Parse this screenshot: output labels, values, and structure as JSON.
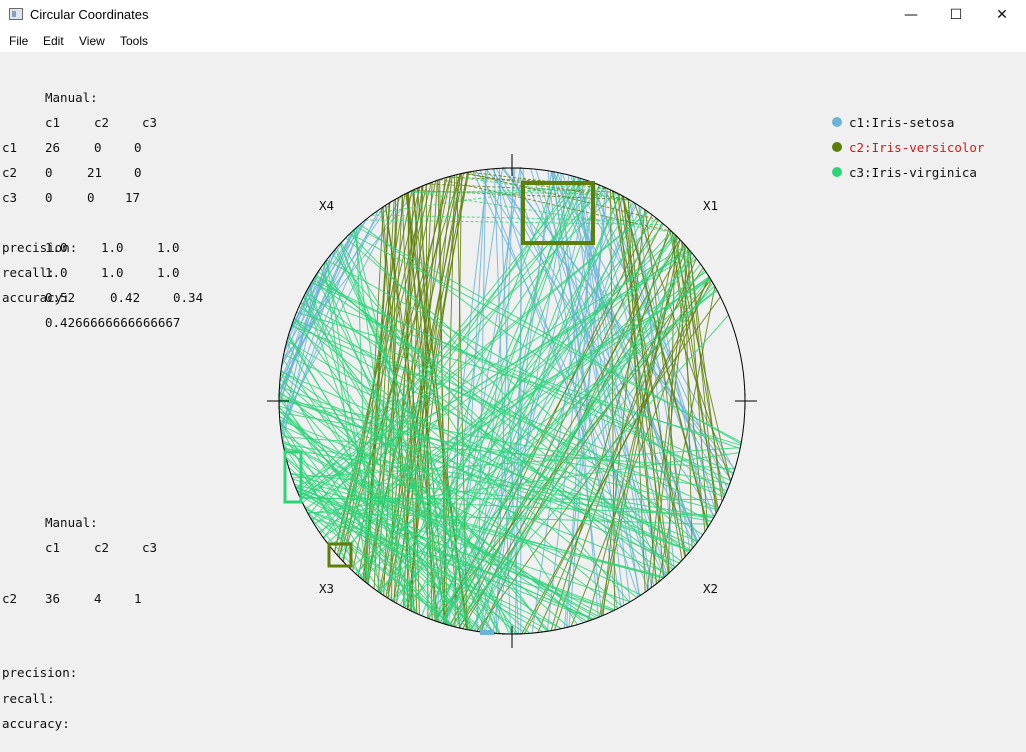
{
  "window": {
    "title": "Circular Coordinates",
    "minimize": "—",
    "maximize": "☐",
    "close": "✕"
  },
  "menu": [
    "File",
    "Edit",
    "View",
    "Tools"
  ],
  "top_panel": {
    "heading": "Manual:",
    "col_headers": [
      "c1",
      "c2",
      "c3"
    ],
    "rows": [
      {
        "label": "c1",
        "values": [
          "26",
          "0",
          "0"
        ]
      },
      {
        "label": "c2",
        "values": [
          "0",
          "21",
          "0"
        ]
      },
      {
        "label": "c3",
        "values": [
          "0",
          "0",
          "17"
        ]
      }
    ],
    "precision_label": "precision:",
    "precision_values": [
      "1.0",
      "1.0",
      "1.0"
    ],
    "recall_label": "recall:",
    "recall_values": [
      "1.0",
      "1.0",
      "1.0"
    ],
    "accuracy_label": "accuracy:",
    "accuracy_values": [
      "0.52",
      "0.42",
      "0.34"
    ],
    "overall": "0.4266666666666667"
  },
  "bottom_panel": {
    "heading": "Manual:",
    "col_headers": [
      "c1",
      "c2",
      "c3"
    ],
    "row": {
      "label": "c2",
      "values": [
        "36",
        "4",
        "1"
      ]
    },
    "precision_label": "precision:",
    "recall_label": "recall:",
    "accuracy_label": "accuracy:"
  },
  "axes": {
    "x1": "X1",
    "x2": "X2",
    "x3": "X3",
    "x4": "X4"
  },
  "legend": [
    {
      "label": "c1:Iris-setosa",
      "color": "#6cb3d6",
      "text_color": "#111111"
    },
    {
      "label": "c2:Iris-versicolor",
      "color": "#5a7d0a",
      "text_color": "#d11a1a"
    },
    {
      "label": "c3:Iris-virginica",
      "color": "#2ed47a",
      "text_color": "#111111"
    }
  ],
  "colors": {
    "setosa": "#6cb3d6",
    "versicolor": "#5f7f0a",
    "virginica": "#2ed47a",
    "circle": "#000000"
  }
}
